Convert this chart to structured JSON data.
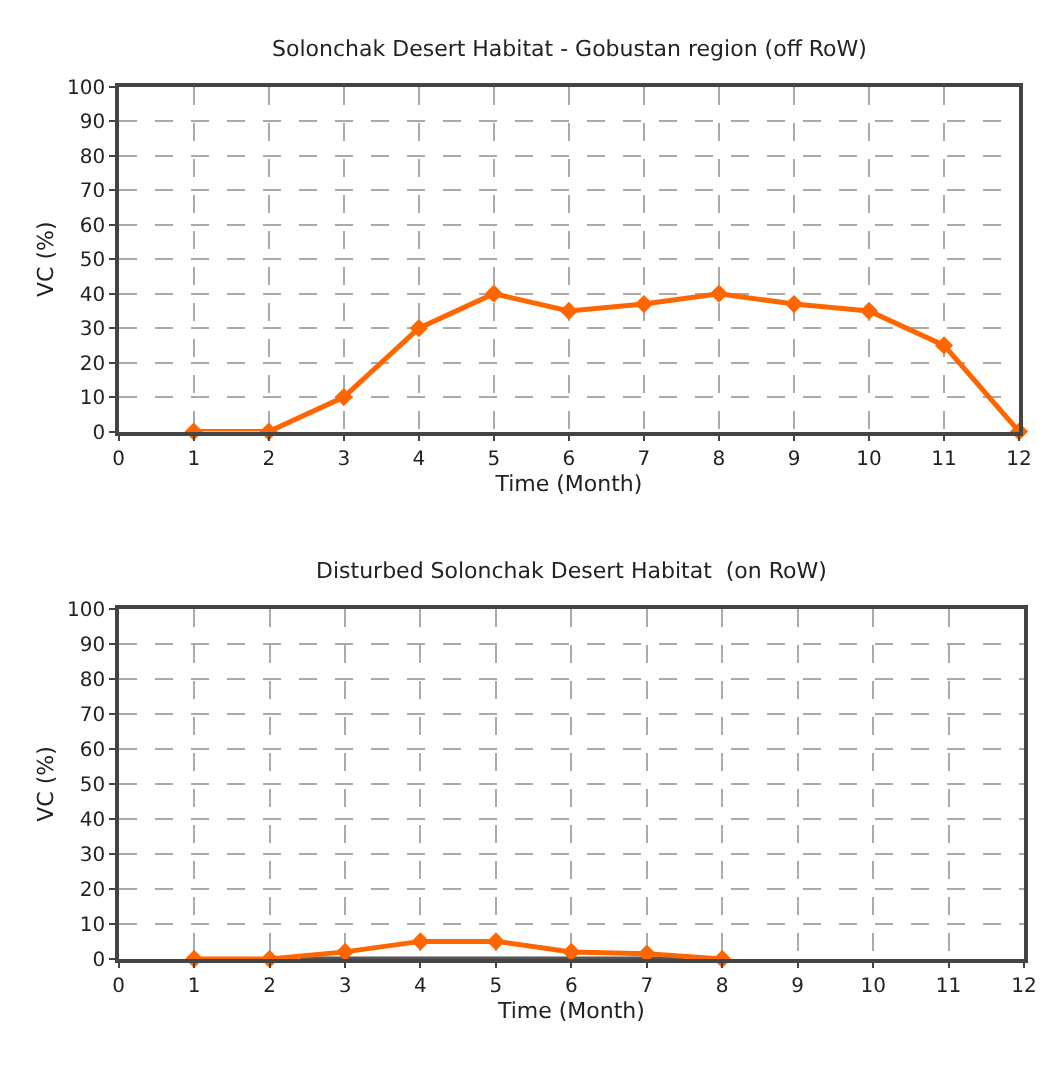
{
  "chart_data": [
    {
      "type": "line",
      "title": "Solonchak Desert Habitat - Gobustan region (off RoW)",
      "xlabel": "Time (Month)",
      "ylabel": "VC (%)",
      "x": [
        1,
        2,
        3,
        4,
        5,
        6,
        7,
        8,
        9,
        10,
        11,
        12
      ],
      "series": [
        {
          "color": "#ff6600",
          "values": [
            0,
            0,
            10,
            30,
            40,
            35,
            37,
            40,
            37,
            35,
            25,
            0
          ]
        }
      ],
      "xlim": [
        0,
        12
      ],
      "xticks": [
        0,
        1,
        2,
        3,
        4,
        5,
        6,
        7,
        8,
        9,
        10,
        11,
        12
      ],
      "ylim": [
        0,
        100
      ],
      "yticks": [
        0,
        10,
        20,
        30,
        40,
        50,
        60,
        70,
        80,
        90,
        100
      ],
      "grid": true,
      "marker": "diamond",
      "line_style": "solid"
    },
    {
      "type": "line",
      "title": "Disturbed Solonchak Desert Habitat  (on RoW)",
      "xlabel": "Time (Month)",
      "ylabel": "VC (%)",
      "x": [
        1,
        2,
        3,
        4,
        5,
        6,
        7,
        8
      ],
      "series": [
        {
          "color": "#555555",
          "x": [
            2.4,
            7.5
          ],
          "values": [
            0,
            0
          ],
          "marker": "none"
        },
        {
          "color": "#ff6600",
          "values": [
            0,
            0,
            2,
            5,
            5,
            2,
            1.5,
            0
          ]
        }
      ],
      "xlim": [
        0,
        12
      ],
      "xticks": [
        0,
        1,
        2,
        3,
        4,
        5,
        6,
        7,
        8,
        9,
        10,
        11,
        12
      ],
      "ylim": [
        0,
        100
      ],
      "yticks": [
        0,
        10,
        20,
        30,
        40,
        50,
        60,
        70,
        80,
        90,
        100
      ],
      "grid": true,
      "marker": "diamond",
      "line_style": "solid"
    }
  ]
}
